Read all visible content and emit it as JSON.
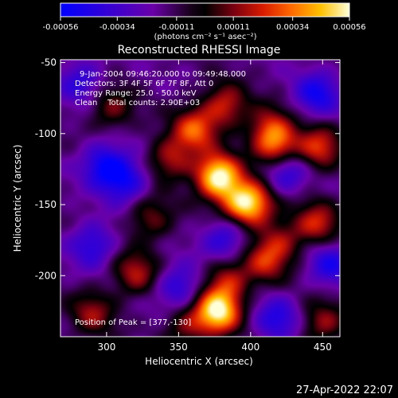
{
  "chart_data": {
    "type": "heatmap",
    "title": "Reconstructed RHESSI Image",
    "xlabel": "Heliocentric X (arcsec)",
    "ylabel": "Heliocentric Y (arcsec)",
    "xlim": [
      268,
      462
    ],
    "ylim": [
      -243,
      -48
    ],
    "xticks": [
      300,
      350,
      400,
      450
    ],
    "yticks": [
      -50,
      -100,
      -150,
      -200
    ],
    "colorbar": {
      "ticks": [
        "-0.00056",
        "-0.00034",
        "-0.00011",
        "0.00011",
        "0.00034",
        "0.00056"
      ],
      "unit_label": "(photons cm⁻² s⁻¹ asec⁻²)",
      "min": -0.00056,
      "max": 0.00056
    },
    "annotations": [
      "9-Jan-2004 09:46:20.000 to 09:49:48.000",
      "Detectors: 3F 4F 5F 6F 7F 8F, Att 0",
      "Energy Range: 25.0 - 50.0 keV",
      "Clean    Total counts: 2.90E+03"
    ],
    "peak_label": "Position of Peak = [377,-130]",
    "peak": [
      377,
      -130
    ],
    "sources": [
      {
        "x": 377,
        "y": -130,
        "amp": 1.0
      },
      {
        "x": 377,
        "y": -225,
        "amp": 0.95
      },
      {
        "x": 393,
        "y": -148,
        "amp": 0.55
      },
      {
        "x": 402,
        "y": -150,
        "amp": 0.55
      },
      {
        "x": 361,
        "y": -97,
        "amp": 0.6
      },
      {
        "x": 382,
        "y": -80,
        "amp": 0.5
      },
      {
        "x": 344,
        "y": -118,
        "amp": 0.45
      },
      {
        "x": 418,
        "y": -110,
        "amp": 0.6
      },
      {
        "x": 413,
        "y": -96,
        "amp": 0.45
      },
      {
        "x": 447,
        "y": -110,
        "amp": 0.55
      },
      {
        "x": 446,
        "y": -163,
        "amp": 0.5
      },
      {
        "x": 410,
        "y": -190,
        "amp": 0.45
      },
      {
        "x": 384,
        "y": -203,
        "amp": 0.45
      },
      {
        "x": 320,
        "y": -198,
        "amp": 0.45
      },
      {
        "x": 290,
        "y": -226,
        "amp": 0.4
      },
      {
        "x": 450,
        "y": -233,
        "amp": 0.4
      },
      {
        "x": 330,
        "y": -160,
        "amp": 0.35
      },
      {
        "x": 303,
        "y": -82,
        "amp": 0.35
      },
      {
        "x": 421,
        "y": -175,
        "amp": 0.35
      },
      {
        "x": 355,
        "y": -236,
        "amp": 0.35
      }
    ],
    "holes": [
      {
        "x": 298,
        "y": -122,
        "amp": 0.5
      },
      {
        "x": 313,
        "y": -133,
        "amp": 0.45
      },
      {
        "x": 424,
        "y": -126,
        "amp": 0.45
      },
      {
        "x": 446,
        "y": -72,
        "amp": 0.45
      },
      {
        "x": 290,
        "y": -178,
        "amp": 0.4
      },
      {
        "x": 382,
        "y": -174,
        "amp": 0.4
      },
      {
        "x": 350,
        "y": -208,
        "amp": 0.4
      },
      {
        "x": 418,
        "y": -231,
        "amp": 0.4
      },
      {
        "x": 455,
        "y": -192,
        "amp": 0.4
      },
      {
        "x": 282,
        "y": -63,
        "amp": 0.35
      }
    ]
  },
  "footer": {
    "timestamp": "27-Apr-2022 22:07"
  }
}
